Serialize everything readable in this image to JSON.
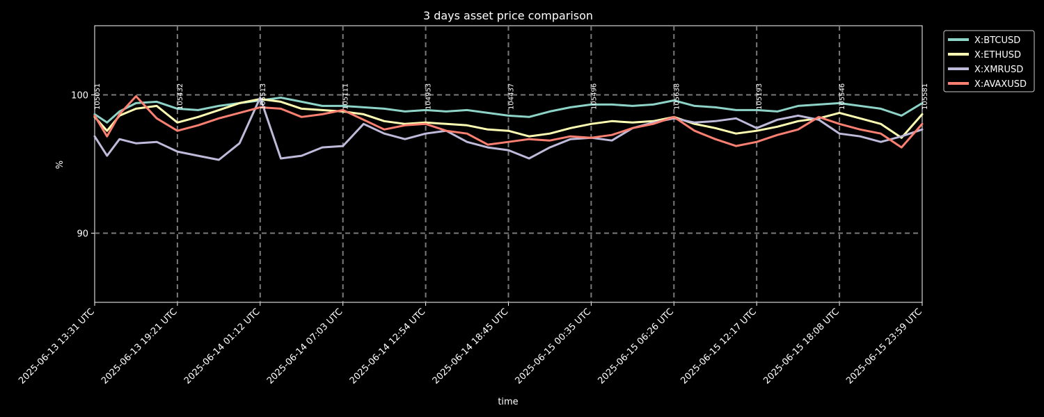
{
  "chart_data": {
    "type": "line",
    "title": "3 days asset price comparison",
    "xlabel": "time",
    "ylabel": "%",
    "ylim": [
      85,
      105
    ],
    "yticks": [
      90,
      100
    ],
    "grid": true,
    "legend_position": "outside-top-right",
    "x_tick_labels": [
      "2025-06-13 13:31 UTC",
      "2025-06-13 19:21 UTC",
      "2025-06-14 01:12 UTC",
      "2025-06-14 07:03 UTC",
      "2025-06-14 12:54 UTC",
      "2025-06-14 18:45 UTC",
      "2025-06-15 00:35 UTC",
      "2025-06-15 06:26 UTC",
      "2025-06-15 12:17 UTC",
      "2025-06-15 18:08 UTC",
      "2025-06-15 23:59 UTC"
    ],
    "annotations": [
      "105051",
      "105432",
      "105513",
      "105111",
      "104953",
      "104437",
      "105496",
      "105638",
      "105193",
      "105546",
      "105581"
    ],
    "series": [
      {
        "name": "X:BTCUSD",
        "color": "#8dd3c7",
        "x_index": [
          0,
          0.15,
          0.3,
          0.5,
          0.75,
          1,
          1.25,
          1.5,
          1.75,
          2,
          2.25,
          2.5,
          2.75,
          3,
          3.25,
          3.5,
          3.75,
          4,
          4.25,
          4.5,
          4.75,
          5,
          5.25,
          5.5,
          5.75,
          6,
          6.25,
          6.5,
          6.75,
          7,
          7.25,
          7.5,
          7.75,
          8,
          8.25,
          8.5,
          8.75,
          9,
          9.25,
          9.5,
          9.75,
          10
        ],
        "values": [
          98.6,
          98.0,
          98.8,
          99.4,
          99.5,
          99.0,
          98.9,
          99.2,
          99.4,
          99.6,
          99.8,
          99.5,
          99.2,
          99.2,
          99.1,
          99.0,
          98.8,
          98.9,
          98.8,
          98.9,
          98.7,
          98.5,
          98.4,
          98.8,
          99.1,
          99.3,
          99.3,
          99.2,
          99.3,
          99.6,
          99.2,
          99.1,
          98.9,
          98.9,
          98.8,
          99.2,
          99.3,
          99.4,
          99.2,
          99.0,
          98.5,
          99.4
        ]
      },
      {
        "name": "X:ETHUSD",
        "color": "#ffffb3",
        "x_index": [
          0,
          0.15,
          0.3,
          0.5,
          0.75,
          1,
          1.25,
          1.5,
          1.75,
          2,
          2.25,
          2.5,
          2.75,
          3,
          3.25,
          3.5,
          3.75,
          4,
          4.25,
          4.5,
          4.75,
          5,
          5.25,
          5.5,
          5.75,
          6,
          6.25,
          6.5,
          6.75,
          7,
          7.25,
          7.5,
          7.75,
          8,
          8.25,
          8.5,
          8.75,
          9,
          9.25,
          9.5,
          9.75,
          10
        ],
        "values": [
          98.4,
          97.4,
          98.5,
          99.0,
          99.2,
          98.0,
          98.4,
          98.9,
          99.4,
          99.7,
          99.5,
          99.0,
          98.9,
          98.8,
          98.6,
          98.1,
          97.9,
          98.0,
          97.9,
          97.8,
          97.5,
          97.4,
          97.0,
          97.2,
          97.6,
          97.9,
          98.1,
          98.0,
          98.1,
          98.4,
          97.9,
          97.6,
          97.2,
          97.4,
          97.7,
          98.1,
          98.3,
          98.7,
          98.3,
          97.9,
          96.9,
          98.6
        ]
      },
      {
        "name": "X:XMRUSD",
        "color": "#bebada",
        "x_index": [
          0,
          0.15,
          0.3,
          0.5,
          0.75,
          1,
          1.25,
          1.5,
          1.75,
          2,
          2.25,
          2.5,
          2.75,
          3,
          3.25,
          3.5,
          3.75,
          4,
          4.25,
          4.5,
          4.75,
          5,
          5.25,
          5.5,
          5.75,
          6,
          6.25,
          6.5,
          6.75,
          7,
          7.25,
          7.5,
          7.75,
          8,
          8.25,
          8.5,
          8.75,
          9,
          9.25,
          9.5,
          9.75,
          10
        ],
        "values": [
          97.0,
          95.6,
          96.8,
          96.5,
          96.6,
          95.9,
          95.6,
          95.3,
          96.5,
          99.8,
          95.4,
          95.6,
          96.2,
          96.3,
          97.9,
          97.2,
          96.8,
          97.2,
          97.4,
          96.6,
          96.2,
          96.0,
          95.4,
          96.2,
          96.8,
          96.9,
          96.7,
          97.6,
          98.0,
          98.3,
          98.0,
          98.1,
          98.3,
          97.6,
          98.2,
          98.5,
          98.2,
          97.2,
          97.0,
          96.6,
          97.0,
          97.5
        ]
      },
      {
        "name": "X:AVAXUSD",
        "color": "#fb8072",
        "x_index": [
          0,
          0.15,
          0.3,
          0.5,
          0.75,
          1,
          1.25,
          1.5,
          1.75,
          2,
          2.25,
          2.5,
          2.75,
          3,
          3.25,
          3.5,
          3.75,
          4,
          4.25,
          4.5,
          4.75,
          5,
          5.25,
          5.5,
          5.75,
          6,
          6.25,
          6.5,
          6.75,
          7,
          7.25,
          7.5,
          7.75,
          8,
          8.25,
          8.5,
          8.75,
          9,
          9.25,
          9.5,
          9.75,
          10
        ],
        "values": [
          98.5,
          97.0,
          98.6,
          99.9,
          98.3,
          97.4,
          97.8,
          98.3,
          98.7,
          99.1,
          99.0,
          98.4,
          98.6,
          98.9,
          98.2,
          97.5,
          97.8,
          97.9,
          97.4,
          97.2,
          96.4,
          96.6,
          96.8,
          96.7,
          97.0,
          96.9,
          97.1,
          97.6,
          97.9,
          98.4,
          97.4,
          96.8,
          96.3,
          96.6,
          97.1,
          97.5,
          98.4,
          97.9,
          97.5,
          97.2,
          96.2,
          97.9
        ]
      }
    ]
  }
}
